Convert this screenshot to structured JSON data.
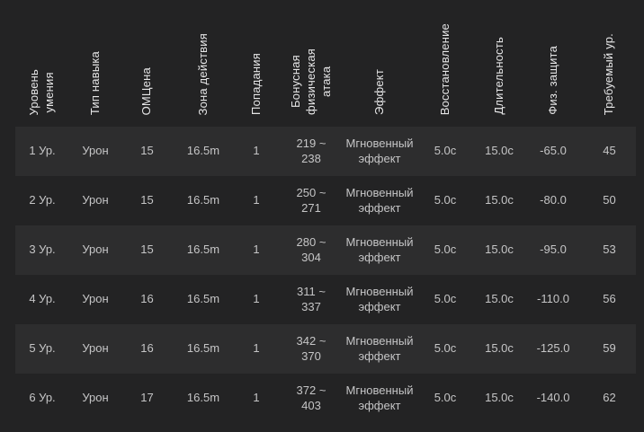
{
  "colors": {
    "page_bg": "#232324",
    "row_stripe": "#2d2d2e",
    "cell_text": "#c5c5c6",
    "header_text": "#e6e6e7"
  },
  "table": {
    "columns": [
      {
        "key": "skill-level",
        "label": "Уровень\nумения"
      },
      {
        "key": "skill-type",
        "label": "Тип навыка"
      },
      {
        "key": "mp-cost",
        "label": "ОМЦена"
      },
      {
        "key": "range",
        "label": "Зона действия"
      },
      {
        "key": "hits",
        "label": "Попадания"
      },
      {
        "key": "bonus-attack",
        "label": "Бонусная\nфизическая\nатака"
      },
      {
        "key": "effect",
        "label": "Эффект"
      },
      {
        "key": "cooldown",
        "label": "Восстановление"
      },
      {
        "key": "duration",
        "label": "Длительность"
      },
      {
        "key": "phys-defense",
        "label": "Физ. защита"
      },
      {
        "key": "required-level",
        "label": "Требуемый ур."
      }
    ],
    "rows": [
      [
        "1 Ур.",
        "Урон",
        "15",
        "16.5m",
        "1",
        "219 ~\n238",
        "Мгновенный\nэффект",
        "5.0с",
        "15.0с",
        "-65.0",
        "45"
      ],
      [
        "2 Ур.",
        "Урон",
        "15",
        "16.5m",
        "1",
        "250 ~\n271",
        "Мгновенный\nэффект",
        "5.0с",
        "15.0с",
        "-80.0",
        "50"
      ],
      [
        "3 Ур.",
        "Урон",
        "15",
        "16.5m",
        "1",
        "280 ~\n304",
        "Мгновенный\nэффект",
        "5.0с",
        "15.0с",
        "-95.0",
        "53"
      ],
      [
        "4 Ур.",
        "Урон",
        "16",
        "16.5m",
        "1",
        "311 ~\n337",
        "Мгновенный\nэффект",
        "5.0с",
        "15.0с",
        "-110.0",
        "56"
      ],
      [
        "5 Ур.",
        "Урон",
        "16",
        "16.5m",
        "1",
        "342 ~\n370",
        "Мгновенный\nэффект",
        "5.0с",
        "15.0с",
        "-125.0",
        "59"
      ],
      [
        "6 Ур.",
        "Урон",
        "17",
        "16.5m",
        "1",
        "372 ~\n403",
        "Мгновенный\nэффект",
        "5.0с",
        "15.0с",
        "-140.0",
        "62"
      ]
    ]
  }
}
